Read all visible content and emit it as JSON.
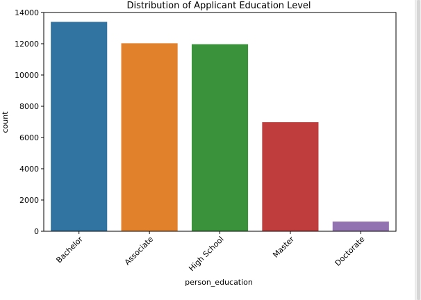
{
  "chart_data": {
    "type": "bar",
    "title": "Distribution of Applicant Education Level",
    "xlabel": "person_education",
    "ylabel": "count",
    "categories": [
      "Bachelor",
      "Associate",
      "High School",
      "Master",
      "Doctorate"
    ],
    "values": [
      13400,
      12030,
      11970,
      6980,
      620
    ],
    "colors": [
      "#3274a1",
      "#e1812c",
      "#3a923a",
      "#c03d3e",
      "#9372b2"
    ],
    "ylim": [
      0,
      14000
    ],
    "yticks": [
      0,
      2000,
      4000,
      6000,
      8000,
      10000,
      12000,
      14000
    ],
    "grid": false,
    "legend": "none"
  }
}
